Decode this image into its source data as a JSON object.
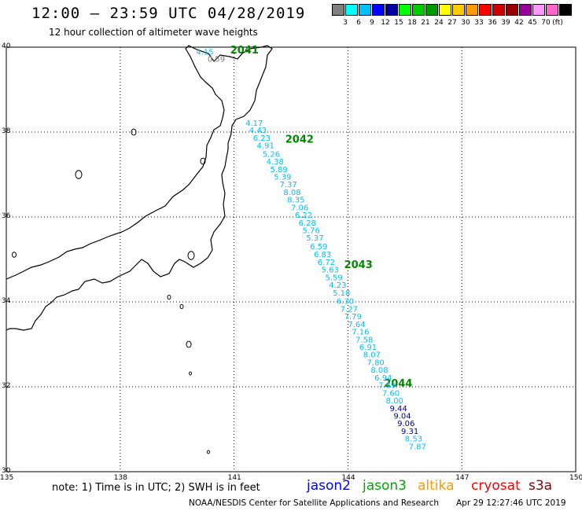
{
  "header": {
    "title": "12:00 – 23:59 UTC 04/28/2019",
    "subtitle": "12 hour collection of altimeter wave heights"
  },
  "colorbar": {
    "unit": "(ft)",
    "colors": [
      "#808080",
      "#00ffff",
      "#00bfff",
      "#0000ff",
      "#0000a0",
      "#00ff00",
      "#00cc00",
      "#009900",
      "#ffff00",
      "#ffcc00",
      "#ff9900",
      "#ff0000",
      "#cc0000",
      "#990000",
      "#990099",
      "#ff99ff",
      "#ff66cc",
      "#000000"
    ],
    "labels": [
      "3",
      "6",
      "9",
      "12",
      "15",
      "18",
      "21",
      "24",
      "27",
      "30",
      "33",
      "36",
      "39",
      "42",
      "45",
      "70"
    ]
  },
  "axes": {
    "lon_labels": [
      "135",
      "138",
      "141",
      "144",
      "147",
      "150"
    ],
    "lat_labels": [
      "40",
      "38",
      "36",
      "34",
      "32",
      "30"
    ]
  },
  "pass_labels": [
    {
      "text": "2041",
      "lon": 140.9,
      "lat": 39.85
    },
    {
      "text": "2042",
      "lon": 142.35,
      "lat": 37.75
    },
    {
      "text": "2043",
      "lon": 143.9,
      "lat": 34.8
    },
    {
      "text": "2044",
      "lon": 144.95,
      "lat": 32.0
    }
  ],
  "measurements": [
    {
      "value": "4.15",
      "lon": 140.0,
      "lat": 39.82,
      "color": "#00bfff"
    },
    {
      "value": "0.59",
      "lon": 140.3,
      "lat": 39.66,
      "color": "#808080"
    },
    {
      "value": "4.17",
      "lon": 141.3,
      "lat": 38.15,
      "color": "#00bfff"
    },
    {
      "value": "4.43",
      "lon": 141.4,
      "lat": 37.98,
      "color": "#00bfff"
    },
    {
      "value": "6.23",
      "lon": 141.5,
      "lat": 37.8,
      "color": "#00bfff"
    },
    {
      "value": "4.91",
      "lon": 141.6,
      "lat": 37.62,
      "color": "#00bfff"
    },
    {
      "value": "5.26",
      "lon": 141.75,
      "lat": 37.42,
      "color": "#00bfff"
    },
    {
      "value": "4.38",
      "lon": 141.85,
      "lat": 37.24,
      "color": "#00bfff"
    },
    {
      "value": "5.89",
      "lon": 141.95,
      "lat": 37.06,
      "color": "#00bfff"
    },
    {
      "value": "5.39",
      "lon": 142.05,
      "lat": 36.88,
      "color": "#00bfff"
    },
    {
      "value": "7.37",
      "lon": 142.2,
      "lat": 36.7,
      "color": "#00bfff"
    },
    {
      "value": "8.08",
      "lon": 142.3,
      "lat": 36.52,
      "color": "#00bfff"
    },
    {
      "value": "8.35",
      "lon": 142.4,
      "lat": 36.34,
      "color": "#00bfff"
    },
    {
      "value": "7.06",
      "lon": 142.5,
      "lat": 36.16,
      "color": "#00bfff"
    },
    {
      "value": "6.22",
      "lon": 142.6,
      "lat": 35.98,
      "color": "#00bfff"
    },
    {
      "value": "6.28",
      "lon": 142.7,
      "lat": 35.8,
      "color": "#00bfff"
    },
    {
      "value": "5.76",
      "lon": 142.8,
      "lat": 35.62,
      "color": "#00bfff"
    },
    {
      "value": "5.37",
      "lon": 142.9,
      "lat": 35.44,
      "color": "#00bfff"
    },
    {
      "value": "6.59",
      "lon": 143.0,
      "lat": 35.24,
      "color": "#00bfff"
    },
    {
      "value": "6.83",
      "lon": 143.1,
      "lat": 35.06,
      "color": "#00bfff"
    },
    {
      "value": "6.72",
      "lon": 143.2,
      "lat": 34.87,
      "color": "#00bfff"
    },
    {
      "value": "5.63",
      "lon": 143.3,
      "lat": 34.69,
      "color": "#00bfff"
    },
    {
      "value": "5.59",
      "lon": 143.4,
      "lat": 34.51,
      "color": "#00bfff"
    },
    {
      "value": "4.23",
      "lon": 143.5,
      "lat": 34.33,
      "color": "#00bfff"
    },
    {
      "value": "5.18",
      "lon": 143.6,
      "lat": 34.15,
      "color": "#00bfff"
    },
    {
      "value": "6.30",
      "lon": 143.7,
      "lat": 33.95,
      "color": "#00bfff"
    },
    {
      "value": "7.27",
      "lon": 143.8,
      "lat": 33.77,
      "color": "#00bfff"
    },
    {
      "value": "7.79",
      "lon": 143.9,
      "lat": 33.59,
      "color": "#00bfff"
    },
    {
      "value": "7.64",
      "lon": 144.0,
      "lat": 33.41,
      "color": "#00bfff"
    },
    {
      "value": "7.16",
      "lon": 144.1,
      "lat": 33.23,
      "color": "#00bfff"
    },
    {
      "value": "7.58",
      "lon": 144.2,
      "lat": 33.05,
      "color": "#00bfff"
    },
    {
      "value": "6.91",
      "lon": 144.3,
      "lat": 32.87,
      "color": "#00bfff"
    },
    {
      "value": "8.07",
      "lon": 144.4,
      "lat": 32.69,
      "color": "#00bfff"
    },
    {
      "value": "7.80",
      "lon": 144.5,
      "lat": 32.51,
      "color": "#00bfff"
    },
    {
      "value": "8.08",
      "lon": 144.6,
      "lat": 32.33,
      "color": "#00bfff"
    },
    {
      "value": "6.94",
      "lon": 144.7,
      "lat": 32.15,
      "color": "#00bfff"
    },
    {
      "value": "7.89",
      "lon": 144.8,
      "lat": 31.97,
      "color": "#00bfff"
    },
    {
      "value": "7.60",
      "lon": 144.9,
      "lat": 31.79,
      "color": "#00bfff"
    },
    {
      "value": "8.00",
      "lon": 145.0,
      "lat": 31.61,
      "color": "#00bfff"
    },
    {
      "value": "9.44",
      "lon": 145.1,
      "lat": 31.43,
      "color": "#0000a0"
    },
    {
      "value": "9.04",
      "lon": 145.2,
      "lat": 31.25,
      "color": "#0000a0"
    },
    {
      "value": "9.06",
      "lon": 145.3,
      "lat": 31.07,
      "color": "#0000a0"
    },
    {
      "value": "9.31",
      "lon": 145.4,
      "lat": 30.89,
      "color": "#0000a0"
    },
    {
      "value": "8.53",
      "lon": 145.5,
      "lat": 30.71,
      "color": "#00bfff"
    },
    {
      "value": "7.87",
      "lon": 145.6,
      "lat": 30.53,
      "color": "#00bfff"
    }
  ],
  "footer": {
    "note": "note:  1) Time is in UTC;  2) SWH is in feet",
    "satellites": [
      {
        "name": "jason2",
        "color": "#0000ff",
        "left": 390
      },
      {
        "name": "jason3",
        "color": "#00aa00",
        "left": 461
      },
      {
        "name": "altika",
        "color": "#ff9900",
        "left": 531
      },
      {
        "name": "cryosat",
        "color": "#ff0000",
        "left": 599
      },
      {
        "name": "s3a",
        "color": "#8b0000",
        "left": 672
      }
    ],
    "credit": "NOAA/NESDIS Center for Satellite Applications and Research",
    "timestamp": "Apr 29 12:27:46 UTC 2019"
  }
}
